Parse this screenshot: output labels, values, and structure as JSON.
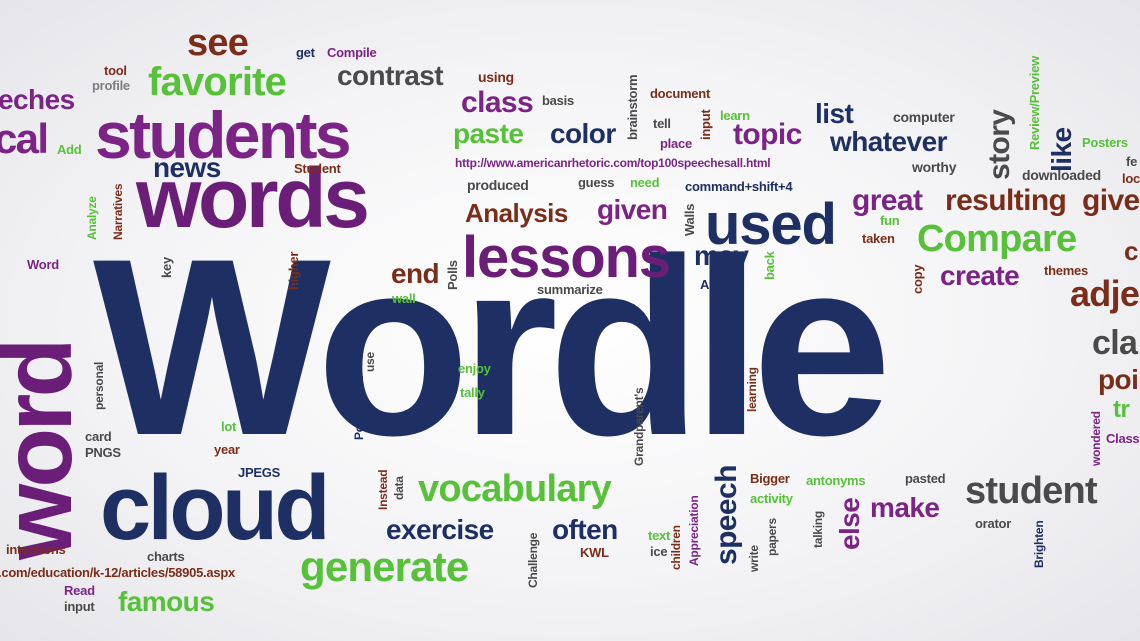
{
  "palette": {
    "navy": "#1e2f63",
    "purple": "#6a1e78",
    "magenta": "#7b2486",
    "green": "#57c13a",
    "brown": "#7a2e1a",
    "gray": "#4a4a4a",
    "lightgray": "#7d7d7d"
  },
  "words": [
    {
      "t": "Wordle"
    },
    {
      "t": "word"
    },
    {
      "t": "words"
    },
    {
      "t": "students"
    },
    {
      "t": "cloud"
    },
    {
      "t": "lessons"
    },
    {
      "t": "used"
    },
    {
      "t": "favorite"
    },
    {
      "t": "see"
    },
    {
      "t": "contrast"
    },
    {
      "t": "vocabulary"
    },
    {
      "t": "generate"
    },
    {
      "t": "Compare"
    },
    {
      "t": "student"
    },
    {
      "t": "great"
    },
    {
      "t": "resulting"
    },
    {
      "t": "give"
    },
    {
      "t": "eches"
    },
    {
      "t": "cal"
    },
    {
      "t": "news"
    },
    {
      "t": "class"
    },
    {
      "t": "paste"
    },
    {
      "t": "color"
    },
    {
      "t": "topic"
    },
    {
      "t": "list"
    },
    {
      "t": "whatever"
    },
    {
      "t": "story"
    },
    {
      "t": "like"
    },
    {
      "t": "Analysis"
    },
    {
      "t": "given"
    },
    {
      "t": "may"
    },
    {
      "t": "end"
    },
    {
      "t": "create"
    },
    {
      "t": "adje"
    },
    {
      "t": "cla"
    },
    {
      "t": "poi"
    },
    {
      "t": "exercise"
    },
    {
      "t": "often"
    },
    {
      "t": "famous"
    },
    {
      "t": "make"
    },
    {
      "t": "else"
    },
    {
      "t": "speech"
    },
    {
      "t": "tool"
    },
    {
      "t": "profile"
    },
    {
      "t": "get"
    },
    {
      "t": "Compile"
    },
    {
      "t": "using"
    },
    {
      "t": "basis"
    },
    {
      "t": "brainstorm"
    },
    {
      "t": "document"
    },
    {
      "t": "learn"
    },
    {
      "t": "tell"
    },
    {
      "t": "input"
    },
    {
      "t": "place"
    },
    {
      "t": "computer"
    },
    {
      "t": "Review/Preview"
    },
    {
      "t": "Posters"
    },
    {
      "t": "fe"
    },
    {
      "t": "worthy"
    },
    {
      "t": "downloaded"
    },
    {
      "t": "loc"
    },
    {
      "t": "http://www.americanrhetoric.com/top100speechesall.html"
    },
    {
      "t": "Student"
    },
    {
      "t": "Add"
    },
    {
      "t": "produced"
    },
    {
      "t": "guess"
    },
    {
      "t": "need"
    },
    {
      "t": "command+shift+4"
    },
    {
      "t": "Analyze"
    },
    {
      "t": "Narratives"
    },
    {
      "t": "Word"
    },
    {
      "t": "key"
    },
    {
      "t": "higher"
    },
    {
      "t": "Polls"
    },
    {
      "t": "wall"
    },
    {
      "t": "Walls"
    },
    {
      "t": "summarize"
    },
    {
      "t": "Affairs"
    },
    {
      "t": "back"
    },
    {
      "t": "fun"
    },
    {
      "t": "taken"
    },
    {
      "t": "copy"
    },
    {
      "t": "themes"
    },
    {
      "t": "c"
    },
    {
      "t": "enjoy"
    },
    {
      "t": "tally"
    },
    {
      "t": "personal"
    },
    {
      "t": "PowerPoint"
    },
    {
      "t": "use"
    },
    {
      "t": "lot"
    },
    {
      "t": "year"
    },
    {
      "t": "card"
    },
    {
      "t": "PNGS"
    },
    {
      "t": "JPEGS"
    },
    {
      "t": "Instead"
    },
    {
      "t": "data"
    },
    {
      "t": "Grandparent's"
    },
    {
      "t": "Write"
    },
    {
      "t": "learning"
    },
    {
      "t": "children"
    },
    {
      "t": "Appreciation"
    },
    {
      "t": "Bigger"
    },
    {
      "t": "antonyms"
    },
    {
      "t": "activity"
    },
    {
      "t": "pasted"
    },
    {
      "t": "orator"
    },
    {
      "t": "Brighten"
    },
    {
      "t": "wondered"
    },
    {
      "t": "Class"
    },
    {
      "t": "tr"
    },
    {
      "t": "intentions"
    },
    {
      "t": "charts"
    },
    {
      "t": ".com/education/k-12/articles/58905.aspx"
    },
    {
      "t": "Read"
    },
    {
      "t": "input"
    },
    {
      "t": "Challenge"
    },
    {
      "t": "KWL"
    },
    {
      "t": "text"
    },
    {
      "t": "ice"
    },
    {
      "t": "write"
    },
    {
      "t": "papers"
    },
    {
      "t": "talking"
    }
  ]
}
